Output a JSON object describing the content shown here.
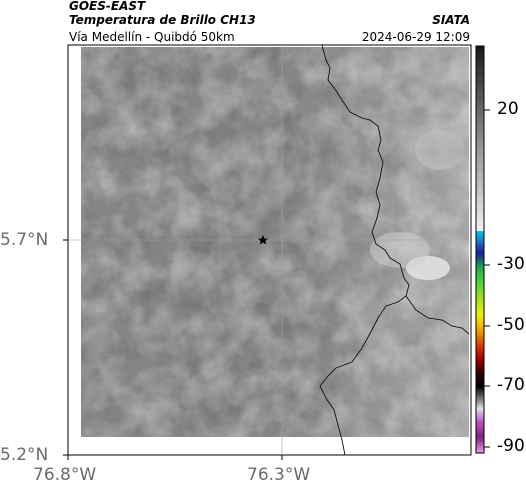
{
  "header": {
    "line1": "GOES-EAST",
    "line2": "Temperatura de Brillo CH13",
    "brand": "SIATA",
    "subtitle": "Vía Medellín - Quibdó 50km",
    "datetime": "2024-06-29 12:09"
  },
  "axes": {
    "lat_ticks": [
      "5.7°N",
      "5.2°N"
    ],
    "lon_ticks": [
      "76.8°W",
      "76.3°W"
    ]
  },
  "colorbar": {
    "tick_labels": [
      "20",
      "-30",
      "-50",
      "-70",
      "-90"
    ]
  },
  "map": {
    "marker": "star-marker",
    "colors": {
      "frame": "#000000",
      "border_line": "#111111",
      "grid": "#a0a0a0"
    }
  }
}
